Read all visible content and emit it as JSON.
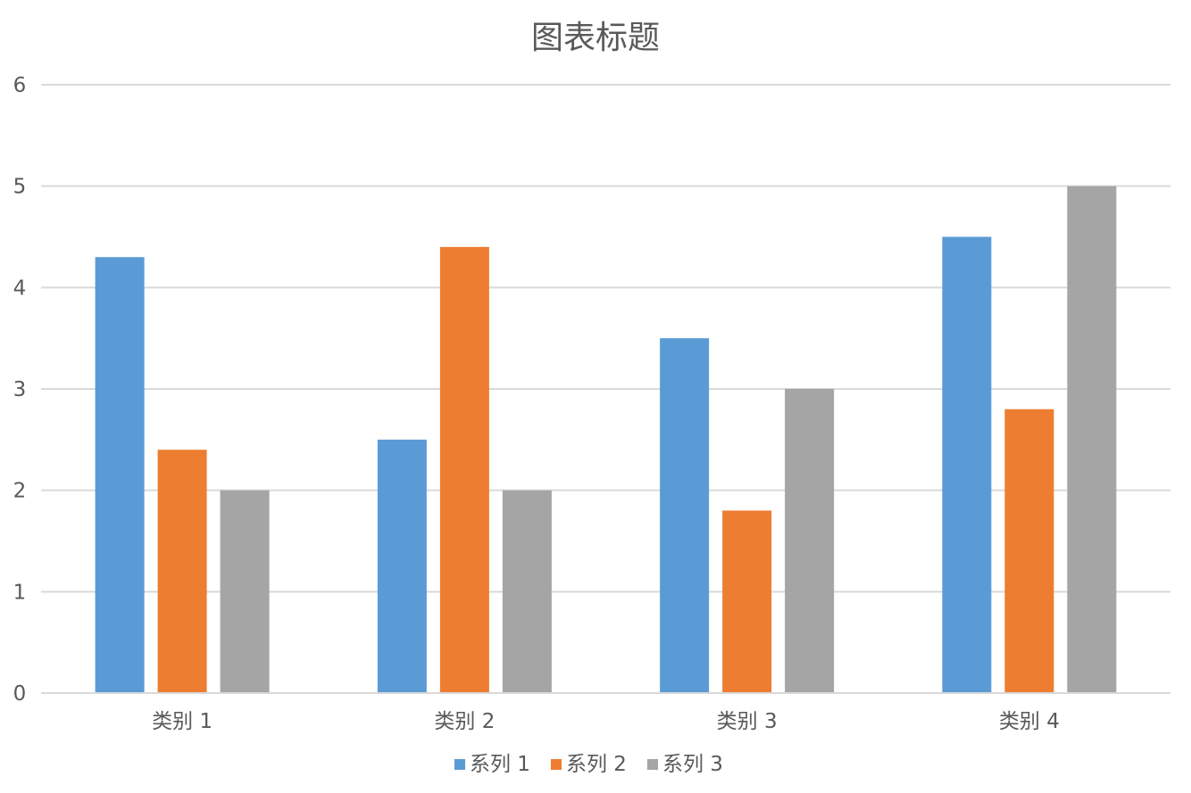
{
  "chart_data": {
    "type": "bar",
    "title": "图表标题",
    "categories": [
      "类别 1",
      "类别 2",
      "类别 3",
      "类别 4"
    ],
    "series": [
      {
        "name": "系列 1",
        "color": "#5B9BD5",
        "values": [
          4.3,
          2.5,
          3.5,
          4.5
        ]
      },
      {
        "name": "系列 2",
        "color": "#ED7D31",
        "values": [
          2.4,
          4.4,
          1.8,
          2.8
        ]
      },
      {
        "name": "系列 3",
        "color": "#A5A5A5",
        "values": [
          2,
          2,
          3,
          5
        ]
      }
    ],
    "yticks": [
      "0",
      "1",
      "2",
      "3",
      "4",
      "5",
      "6"
    ],
    "ylim": [
      0,
      6
    ],
    "grid": true,
    "legend": "bottom"
  }
}
